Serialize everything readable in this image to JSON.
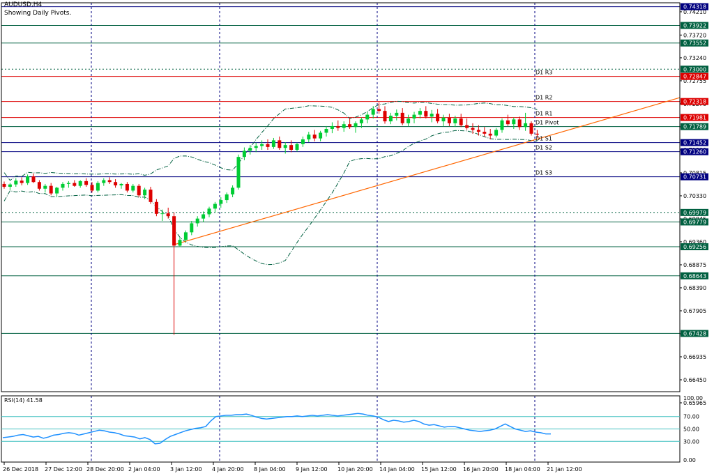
{
  "header": {
    "title": "AUDUSD,H4",
    "subtitle": "Showing Daily Pivots."
  },
  "rsi": {
    "label": "RSI(14) 41.58",
    "levels": [
      "100.00",
      "70.00",
      "50.00",
      "30.00",
      "0.00"
    ]
  },
  "colors": {
    "bull": "#00cc33",
    "bear": "#dd0000",
    "support_line": "#000080",
    "resistance_line": "#dd0000",
    "green_level": "#006040",
    "trendline": "#ff6600",
    "rsi_line": "#1e90ff",
    "rsi_level": "#40c0c0"
  },
  "chart_data": [
    {
      "type": "candlestick",
      "symbol": "AUDUSD",
      "timeframe": "H4",
      "ylim": [
        0.662,
        0.744
      ],
      "y_ticks": [
        "0.74210",
        "0.73720",
        "0.73240",
        "0.72755",
        "0.72270",
        "0.71785",
        "0.71300",
        "0.70815",
        "0.70330",
        "0.69845",
        "0.69360",
        "0.68875",
        "0.68390",
        "0.67905",
        "0.67420",
        "0.66935",
        "0.66450",
        "0.65965"
      ],
      "x_ticks": [
        "26 Dec 2018",
        "27 Dec 12:00",
        "28 Dec 20:00",
        "2 Jan 04:00",
        "3 Jan 12:00",
        "4 Jan 20:00",
        "8 Jan 04:00",
        "9 Jan 12:00",
        "10 Jan 20:00",
        "14 Jan 04:00",
        "15 Jan 12:00",
        "16 Jan 20:00",
        "18 Jan 04:00",
        "21 Jan 12:00"
      ],
      "price_tags": [
        {
          "price": "0.74318",
          "color": "#000080"
        },
        {
          "price": "0.73922",
          "color": "#006040"
        },
        {
          "price": "0.73552",
          "color": "#006040"
        },
        {
          "price": "0.73000",
          "color": "#006040"
        },
        {
          "price": "0.72847",
          "color": "#dd0000"
        },
        {
          "price": "0.72318",
          "color": "#dd0000"
        },
        {
          "price": "0.71981",
          "color": "#dd0000"
        },
        {
          "price": "0.71789",
          "color": "#006040"
        },
        {
          "price": "0.71452",
          "color": "#000080"
        },
        {
          "price": "0.71260",
          "color": "#000080"
        },
        {
          "price": "0.70731",
          "color": "#000080"
        },
        {
          "price": "0.69979",
          "color": "#006040"
        },
        {
          "price": "0.69779",
          "color": "#006040"
        },
        {
          "price": "0.69256",
          "color": "#006040"
        },
        {
          "price": "0.68643",
          "color": "#006040"
        },
        {
          "price": "0.67428",
          "color": "#006040"
        }
      ],
      "pivot_labels": [
        {
          "text": "D1 R3",
          "price": 0.72847
        },
        {
          "text": "D1 R2",
          "price": 0.72318
        },
        {
          "text": "D1 R1",
          "price": 0.71981
        },
        {
          "text": "D1 Pivot",
          "price": 0.71789
        },
        {
          "text": "D1 S1",
          "price": 0.71452
        },
        {
          "text": "D1 S2",
          "price": 0.7126
        },
        {
          "text": "D1 S3",
          "price": 0.70731
        }
      ],
      "horizontal_levels": [
        {
          "price": 0.74318,
          "color": "#000080",
          "style": "solid"
        },
        {
          "price": 0.73922,
          "color": "#006040",
          "style": "solid"
        },
        {
          "price": 0.73552,
          "color": "#006040",
          "style": "solid"
        },
        {
          "price": 0.73,
          "color": "#006040",
          "style": "dotted"
        },
        {
          "price": 0.72847,
          "color": "#dd0000",
          "style": "solid"
        },
        {
          "price": 0.72318,
          "color": "#dd0000",
          "style": "solid"
        },
        {
          "price": 0.71981,
          "color": "#dd0000",
          "style": "solid"
        },
        {
          "price": 0.71789,
          "color": "#006040",
          "style": "solid"
        },
        {
          "price": 0.71452,
          "color": "#000080",
          "style": "solid"
        },
        {
          "price": 0.7126,
          "color": "#000080",
          "style": "solid"
        },
        {
          "price": 0.70731,
          "color": "#000080",
          "style": "solid"
        },
        {
          "price": 0.69979,
          "color": "#006040",
          "style": "dotted"
        },
        {
          "price": 0.69779,
          "color": "#006040",
          "style": "solid"
        },
        {
          "price": 0.69256,
          "color": "#006040",
          "style": "solid"
        },
        {
          "price": 0.68643,
          "color": "#006040",
          "style": "solid"
        },
        {
          "price": 0.67428,
          "color": "#006040",
          "style": "solid"
        }
      ],
      "trendline": {
        "from": [
          38,
          0.693
        ],
        "to": [
          162,
          0.724
        ]
      },
      "day_separators": [
        21,
        69,
        89,
        134,
        127
      ],
      "candles": [
        [
          0.7058,
          0.7063,
          0.7048,
          0.7052
        ],
        [
          0.7052,
          0.706,
          0.7045,
          0.7057
        ],
        [
          0.7057,
          0.707,
          0.7052,
          0.7065
        ],
        [
          0.7065,
          0.7072,
          0.7055,
          0.706
        ],
        [
          0.706,
          0.7078,
          0.7056,
          0.7074
        ],
        [
          0.7074,
          0.708,
          0.706,
          0.7062
        ],
        [
          0.7062,
          0.7066,
          0.7044,
          0.7048
        ],
        [
          0.7048,
          0.7058,
          0.704,
          0.7054
        ],
        [
          0.7054,
          0.706,
          0.7034,
          0.7038
        ],
        [
          0.7038,
          0.7052,
          0.7032,
          0.705
        ],
        [
          0.705,
          0.7062,
          0.7044,
          0.7058
        ],
        [
          0.7058,
          0.7064,
          0.705,
          0.706
        ],
        [
          0.706,
          0.7066,
          0.7052,
          0.7054
        ],
        [
          0.7054,
          0.7066,
          0.705,
          0.7064
        ],
        [
          0.7064,
          0.707,
          0.7052,
          0.7056
        ],
        [
          0.7056,
          0.7062,
          0.704,
          0.7044
        ],
        [
          0.7044,
          0.7064,
          0.704,
          0.706
        ],
        [
          0.706,
          0.707,
          0.7054,
          0.7066
        ],
        [
          0.7066,
          0.7072,
          0.7058,
          0.7062
        ],
        [
          0.7062,
          0.7068,
          0.705,
          0.7055
        ],
        [
          0.7055,
          0.706,
          0.7048,
          0.7058
        ],
        [
          0.7058,
          0.7062,
          0.704,
          0.7044
        ],
        [
          0.7044,
          0.7058,
          0.704,
          0.7054
        ],
        [
          0.7054,
          0.7058,
          0.703,
          0.7034
        ],
        [
          0.7034,
          0.705,
          0.7026,
          0.7046
        ],
        [
          0.7046,
          0.7052,
          0.7016,
          0.702
        ],
        [
          0.702,
          0.7026,
          0.699,
          0.6995
        ],
        [
          0.6995,
          0.7004,
          0.698,
          0.6996
        ],
        [
          0.6996,
          0.7008,
          0.6985,
          0.699
        ],
        [
          0.699,
          0.6998,
          0.674,
          0.6928
        ],
        [
          0.6928,
          0.6945,
          0.6925,
          0.694
        ],
        [
          0.694,
          0.696,
          0.6935,
          0.6956
        ],
        [
          0.6956,
          0.698,
          0.695,
          0.6975
        ],
        [
          0.6975,
          0.699,
          0.6968,
          0.6985
        ],
        [
          0.6985,
          0.7,
          0.6978,
          0.6994
        ],
        [
          0.6994,
          0.701,
          0.6988,
          0.7006
        ],
        [
          0.7006,
          0.702,
          0.6998,
          0.7016
        ],
        [
          0.7016,
          0.703,
          0.7008,
          0.7024
        ],
        [
          0.7024,
          0.704,
          0.7018,
          0.7036
        ],
        [
          0.7036,
          0.7055,
          0.703,
          0.705
        ],
        [
          0.705,
          0.712,
          0.7046,
          0.7115
        ],
        [
          0.7115,
          0.7135,
          0.7108,
          0.7128
        ],
        [
          0.7128,
          0.714,
          0.712,
          0.7134
        ],
        [
          0.7134,
          0.7145,
          0.7125,
          0.7138
        ],
        [
          0.7138,
          0.715,
          0.713,
          0.7142
        ],
        [
          0.7142,
          0.7152,
          0.713,
          0.7136
        ],
        [
          0.7136,
          0.7155,
          0.7132,
          0.715
        ],
        [
          0.715,
          0.7158,
          0.713,
          0.7134
        ],
        [
          0.7134,
          0.7146,
          0.7122,
          0.714
        ],
        [
          0.714,
          0.715,
          0.7125,
          0.713
        ],
        [
          0.713,
          0.7145,
          0.7126,
          0.7142
        ],
        [
          0.7142,
          0.7158,
          0.7136,
          0.7152
        ],
        [
          0.7152,
          0.7168,
          0.7146,
          0.7162
        ],
        [
          0.7162,
          0.7172,
          0.7148,
          0.7154
        ],
        [
          0.7154,
          0.717,
          0.7148,
          0.7166
        ],
        [
          0.7166,
          0.718,
          0.7158,
          0.7174
        ],
        [
          0.7174,
          0.7188,
          0.7165,
          0.718
        ],
        [
          0.718,
          0.7192,
          0.717,
          0.7176
        ],
        [
          0.7176,
          0.719,
          0.7168,
          0.7184
        ],
        [
          0.7184,
          0.7196,
          0.7174,
          0.7178
        ],
        [
          0.7178,
          0.719,
          0.7166,
          0.7186
        ],
        [
          0.7186,
          0.7198,
          0.7176,
          0.7194
        ],
        [
          0.7194,
          0.721,
          0.7186,
          0.7204
        ],
        [
          0.7204,
          0.7222,
          0.7196,
          0.7216
        ],
        [
          0.7216,
          0.723,
          0.7206,
          0.7212
        ],
        [
          0.7212,
          0.7222,
          0.7185,
          0.719
        ],
        [
          0.719,
          0.7208,
          0.7184,
          0.7202
        ],
        [
          0.7202,
          0.7215,
          0.7192,
          0.7208
        ],
        [
          0.7208,
          0.7218,
          0.7182,
          0.7186
        ],
        [
          0.7186,
          0.7204,
          0.718,
          0.7196
        ],
        [
          0.7196,
          0.721,
          0.7186,
          0.7204
        ],
        [
          0.7204,
          0.7218,
          0.7196,
          0.7212
        ],
        [
          0.7212,
          0.7222,
          0.7196,
          0.72
        ],
        [
          0.72,
          0.7214,
          0.7188,
          0.7206
        ],
        [
          0.7206,
          0.7216,
          0.7186,
          0.719
        ],
        [
          0.719,
          0.7204,
          0.718,
          0.7198
        ],
        [
          0.7198,
          0.7206,
          0.718,
          0.7186
        ],
        [
          0.7186,
          0.7202,
          0.7178,
          0.7196
        ],
        [
          0.7196,
          0.7206,
          0.7178,
          0.7182
        ],
        [
          0.7182,
          0.7196,
          0.7172,
          0.7176
        ],
        [
          0.7176,
          0.7186,
          0.7164,
          0.7172
        ],
        [
          0.7172,
          0.7182,
          0.716,
          0.7168
        ],
        [
          0.7168,
          0.7178,
          0.7158,
          0.7164
        ],
        [
          0.7164,
          0.7174,
          0.7152,
          0.716
        ],
        [
          0.716,
          0.7176,
          0.7156,
          0.7172
        ],
        [
          0.7172,
          0.7196,
          0.7166,
          0.7192
        ],
        [
          0.7192,
          0.7204,
          0.718,
          0.7184
        ],
        [
          0.7184,
          0.7198,
          0.7174,
          0.7194
        ],
        [
          0.7194,
          0.72,
          0.7172,
          0.7178
        ],
        [
          0.7178,
          0.7208,
          0.717,
          0.7186
        ],
        [
          0.7186,
          0.719,
          0.716,
          0.7164
        ],
        [
          0.7164,
          0.7172,
          0.7155,
          0.7162
        ]
      ]
    },
    {
      "type": "line",
      "title": "RSI(14) 41.58",
      "ylim": [
        0,
        100
      ],
      "y_ticks": [
        100,
        70,
        50,
        30,
        0
      ],
      "values": [
        36,
        37,
        38,
        40,
        41,
        39,
        37,
        38,
        35,
        37,
        40,
        41,
        43,
        44,
        43,
        40,
        42,
        44,
        46,
        48,
        47,
        45,
        44,
        42,
        39,
        38,
        37,
        34,
        36,
        33,
        26,
        27,
        33,
        38,
        41,
        44,
        47,
        49,
        51,
        52,
        54,
        63,
        70,
        71,
        72,
        72,
        73,
        73,
        74,
        72,
        69,
        67,
        66,
        67,
        68,
        69,
        70,
        70,
        71,
        70,
        71,
        72,
        71,
        72,
        73,
        72,
        71,
        72,
        73,
        74,
        75,
        74,
        72,
        71,
        69,
        65,
        62,
        64,
        63,
        61,
        62,
        64,
        62,
        58,
        56,
        57,
        55,
        53,
        54,
        54,
        52,
        50,
        48,
        47,
        46,
        47,
        48,
        50,
        54,
        58,
        54,
        50,
        48,
        46,
        47,
        45,
        44,
        42,
        42
      ]
    }
  ]
}
